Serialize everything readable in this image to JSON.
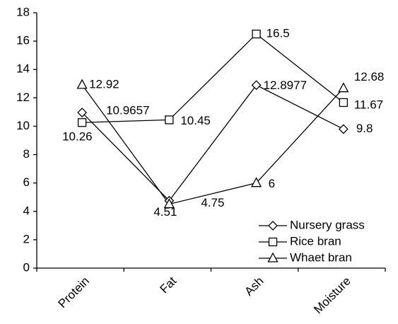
{
  "chart_data": {
    "type": "line",
    "categories": [
      "Protein",
      "Fat",
      "Ash",
      "Moisture"
    ],
    "series": [
      {
        "name": "Nursery grass",
        "color": "#000000",
        "marker": "diamond",
        "values": [
          10.9657,
          4.75,
          12.8977,
          9.8
        ]
      },
      {
        "name": "Rice bran",
        "color": "#000000",
        "marker": "square",
        "values": [
          10.26,
          10.45,
          16.5,
          11.67
        ]
      },
      {
        "name": "Whaet bran",
        "color": "#000000",
        "marker": "triangle",
        "values": [
          12.92,
          4.51,
          6,
          12.68
        ]
      }
    ],
    "ylim": [
      0,
      18
    ],
    "yticks": [
      0,
      2,
      4,
      6,
      8,
      10,
      12,
      14,
      16,
      18
    ],
    "grid": false,
    "legend": "lower right"
  }
}
